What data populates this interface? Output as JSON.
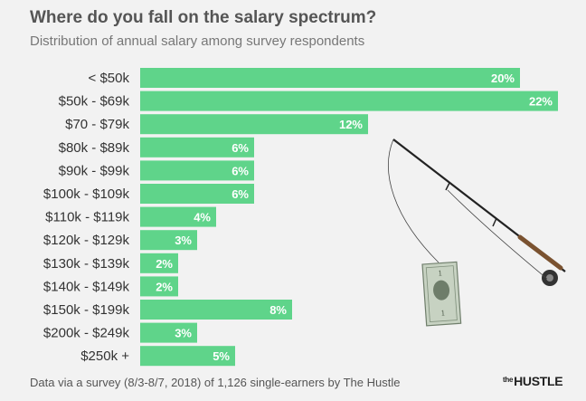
{
  "chart_data": {
    "type": "bar",
    "orientation": "horizontal",
    "title": "Where do you fall on the salary spectrum?",
    "subtitle": "Distribution of annual salary among survey respondents",
    "categories": [
      "< $50k",
      "$50k - $69k",
      "$70 - $79k",
      "$80k - $89k",
      "$90k - $99k",
      "$100k - $109k",
      "$110k - $119k",
      "$120k - $129k",
      "$130k - $139k",
      "$140k - $149k",
      "$150k - $199k",
      "$200k - $249k",
      "$250k +"
    ],
    "values": [
      20,
      22,
      12,
      6,
      6,
      6,
      4,
      3,
      2,
      2,
      8,
      3,
      5
    ],
    "value_labels": [
      "20%",
      "22%",
      "12%",
      "6%",
      "6%",
      "6%",
      "4%",
      "3%",
      "2%",
      "2%",
      "8%",
      "3%",
      "5%"
    ],
    "unit": "%",
    "bar_color": "#5fd48a",
    "grid": false
  },
  "footer": {
    "source": "Data via a survey (8/3-8/7, 2018) of 1,126 single-earners by The Hustle",
    "brand_prefix": "the",
    "brand_name": "HUSTLE"
  }
}
